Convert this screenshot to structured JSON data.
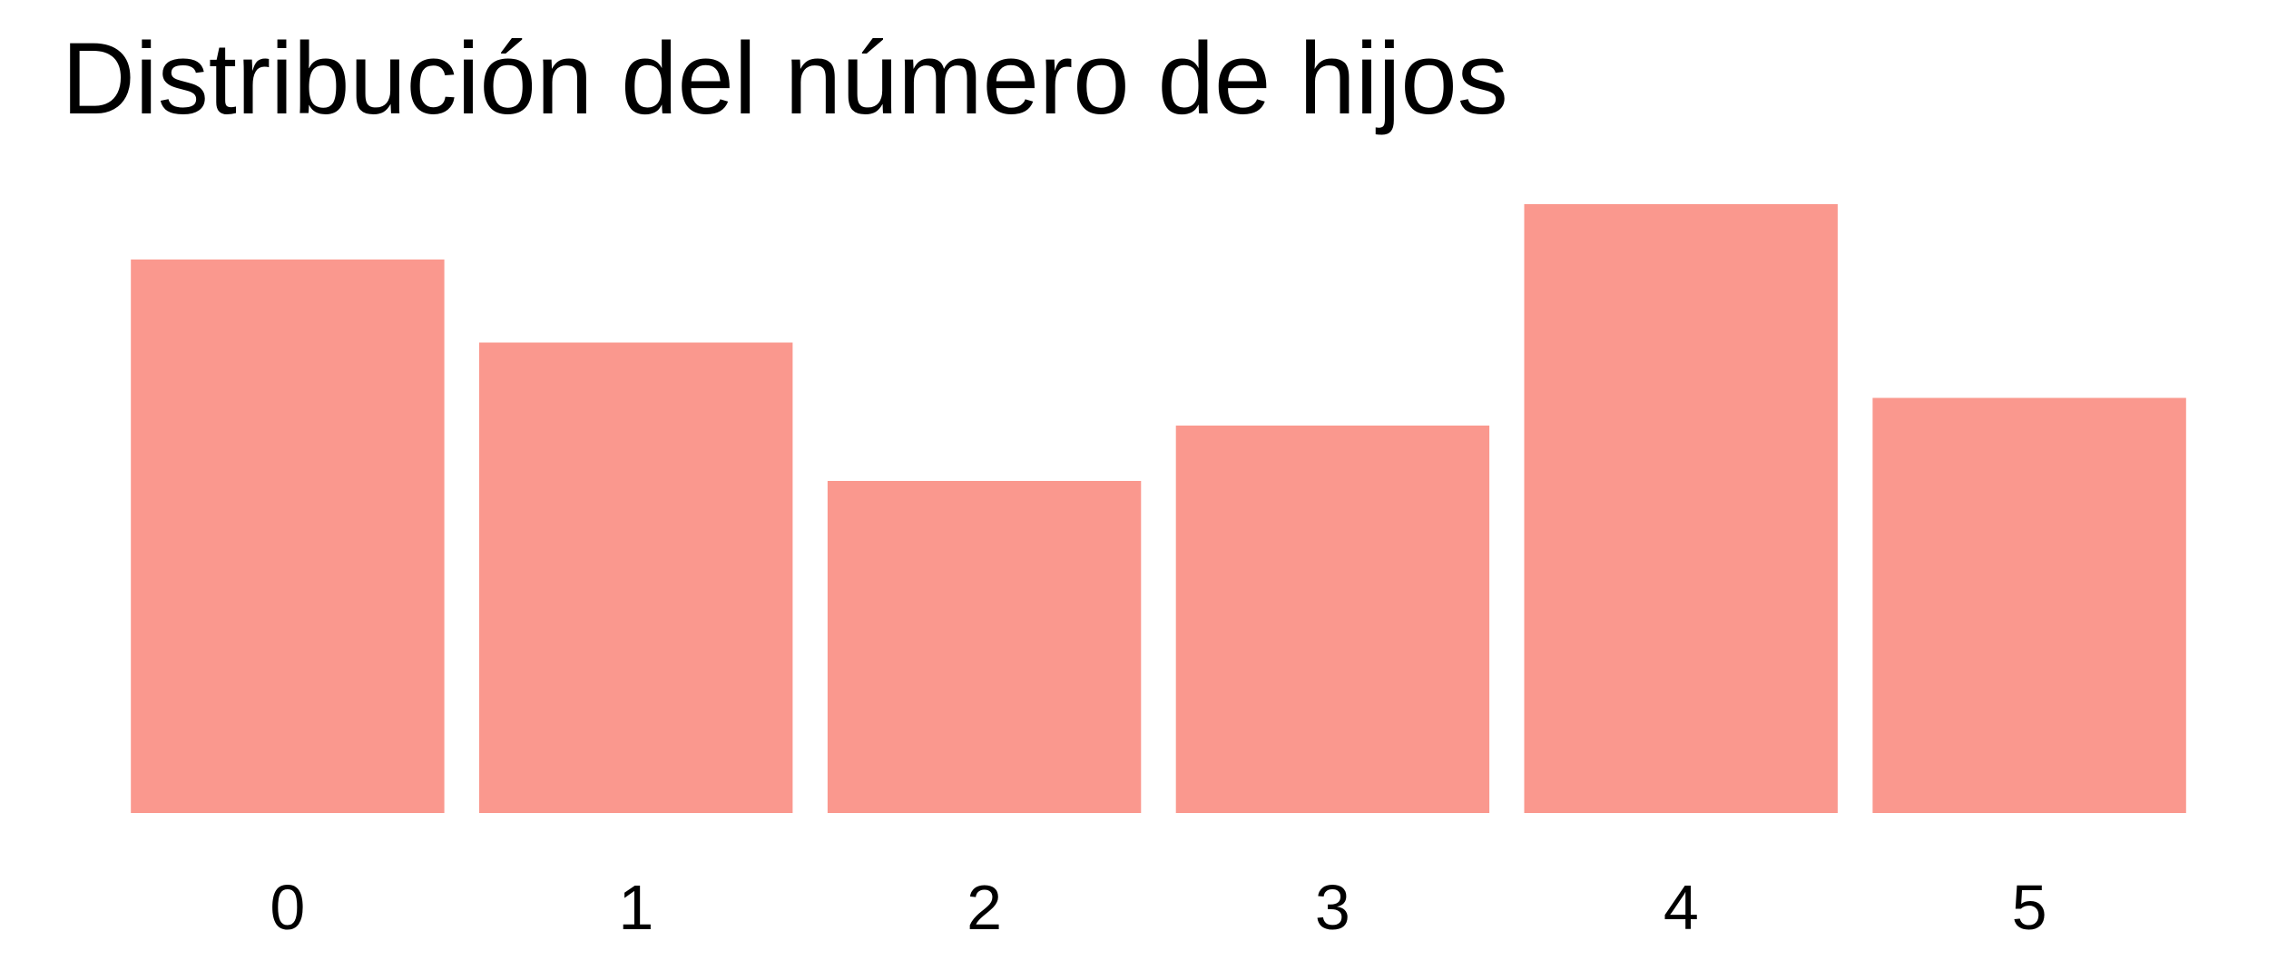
{
  "chart_data": {
    "type": "bar",
    "title": "Distribución del número de hijos",
    "xlabel": "",
    "ylabel": "",
    "categories": [
      "0",
      "1",
      "2",
      "3",
      "4",
      "5"
    ],
    "values": [
      20,
      17,
      12,
      14,
      22,
      15
    ],
    "ylim": [
      0,
      22
    ],
    "grid": false,
    "axes_visible": false,
    "bar_color": "#FA988E",
    "background_color": "#FFFFFF"
  }
}
